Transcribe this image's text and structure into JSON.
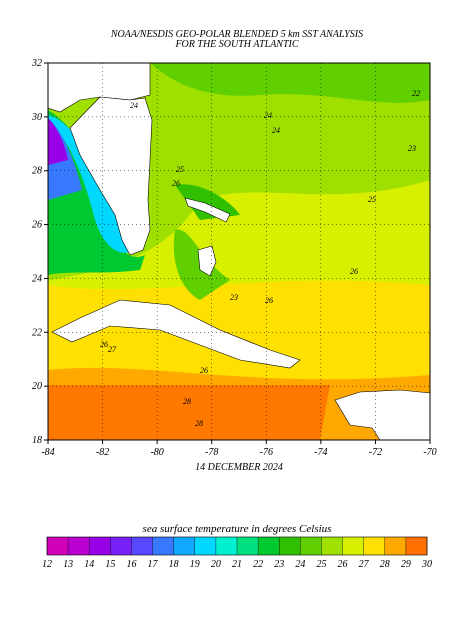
{
  "header": {
    "title": "NOAA/NESDIS GEO-POLAR BLENDED 5 km SST ANALYSIS",
    "subtitle": "FOR THE SOUTH ATLANTIC"
  },
  "map": {
    "xlim": [
      -84,
      -70
    ],
    "ylim": [
      18,
      32
    ],
    "xticks": [
      -84,
      -82,
      -80,
      -78,
      -76,
      -74,
      -72,
      -70
    ],
    "yticks": [
      18,
      20,
      22,
      24,
      26,
      28,
      30,
      32
    ],
    "date": "14 DECEMBER 2024",
    "contour_labels": [
      "22",
      "23",
      "24",
      "24",
      "25",
      "26",
      "26",
      "25",
      "24",
      "23",
      "26",
      "26",
      "27",
      "28",
      "28",
      "26"
    ]
  },
  "colorbar": {
    "label": "sea surface temperature in degrees Celsius",
    "ticks": [
      12,
      13,
      14,
      15,
      16,
      17,
      18,
      19,
      20,
      21,
      22,
      23,
      24,
      25,
      26,
      27,
      28,
      29,
      30
    ],
    "colors": [
      "#d000b8",
      "#b800d0",
      "#9800e8",
      "#7820f8",
      "#5848ff",
      "#3878ff",
      "#10a8ff",
      "#00d8ff",
      "#00f0d0",
      "#00e080",
      "#00c830",
      "#30c000",
      "#60d000",
      "#a0e000",
      "#d8f000",
      "#ffe000",
      "#ffa800",
      "#ff7000"
    ]
  }
}
